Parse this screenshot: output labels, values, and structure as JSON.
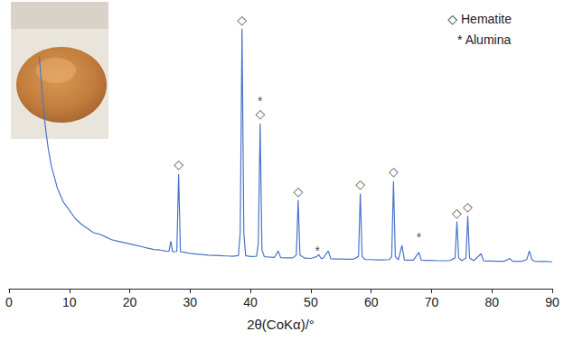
{
  "chart_data": {
    "type": "line",
    "x_label": "2θ(CoKα)/°",
    "color": "#4a74c9",
    "xlim": [
      0,
      90
    ],
    "xticks": [
      0,
      10,
      20,
      30,
      40,
      50,
      60,
      70,
      80,
      90
    ],
    "ylim": [
      0,
      100
    ],
    "tick_labels": "x",
    "grid": false,
    "legend": "upper right",
    "x": [
      5,
      5.5,
      6,
      6.5,
      7,
      8,
      9,
      10,
      11,
      12,
      13,
      14,
      15,
      16,
      17,
      18,
      19,
      20,
      21,
      22,
      23,
      24,
      25,
      26,
      26.5,
      26.8,
      27.1,
      27.8,
      28.1,
      28.4,
      29,
      30,
      31,
      32,
      33,
      34,
      35,
      36,
      37,
      38,
      38.3,
      38.6,
      38.9,
      39.2,
      40,
      41,
      41.3,
      41.6,
      41.9,
      42.3,
      43,
      44,
      44.6,
      45,
      46,
      47,
      47.6,
      47.9,
      48.2,
      49,
      50,
      51,
      51.3,
      51.7,
      52,
      52.9,
      53.3,
      54,
      55,
      56,
      57,
      57.9,
      58.2,
      58.5,
      59,
      60,
      61,
      62,
      63,
      63.4,
      63.7,
      64,
      64.5,
      65.1,
      65.5,
      66,
      67,
      67.9,
      68.3,
      69,
      70,
      71,
      72,
      73,
      73.9,
      74.2,
      74.5,
      75,
      75.7,
      76,
      76.3,
      77,
      78.2,
      78.6,
      79,
      80,
      81,
      82,
      83,
      83.4,
      84,
      85,
      85.8,
      86.2,
      86.6,
      87,
      88,
      89,
      90
    ],
    "values": [
      83,
      70,
      58,
      50,
      44,
      36,
      31,
      28,
      25,
      23,
      21.5,
      20,
      19.5,
      18.5,
      17.5,
      17,
      16.5,
      16,
      15.5,
      15,
      14.5,
      14,
      13.8,
      13.4,
      13.3,
      17,
      13.2,
      13.3,
      41,
      13.2,
      13,
      12.6,
      12.4,
      12.2,
      12,
      11.9,
      11.8,
      11.7,
      11.6,
      11.8,
      20,
      93,
      20,
      11.8,
      11.5,
      11.6,
      16,
      59,
      14,
      11.4,
      11.3,
      11.2,
      13.5,
      11.1,
      11,
      11,
      12,
      31.6,
      12,
      10.9,
      10.8,
      11.5,
      12.2,
      10.8,
      10.8,
      13.5,
      10.7,
      10.6,
      10.6,
      10.5,
      10.5,
      11.5,
      34,
      11.5,
      10.4,
      10.4,
      10.3,
      10.3,
      10.4,
      11.5,
      38.4,
      11.5,
      10.3,
      15.5,
      10.3,
      10.2,
      10.2,
      13,
      10.2,
      10.1,
      10.1,
      10,
      10,
      10,
      11,
      24,
      11,
      10,
      11,
      26,
      11,
      10,
      12.5,
      10,
      9.9,
      9.9,
      9.8,
      9.8,
      10.8,
      9.8,
      9.8,
      9.8,
      10.5,
      13.5,
      10.5,
      9.8,
      9.7,
      9.7,
      9.6
    ],
    "annotations": [
      {
        "x": 28.1,
        "y": 44.5,
        "text": "◇"
      },
      {
        "x": 38.6,
        "y": 96,
        "text": "◇"
      },
      {
        "x": 41.6,
        "y": 62.5,
        "text": "◇"
      },
      {
        "x": 41.6,
        "y": 67,
        "text": "*"
      },
      {
        "x": 47.9,
        "y": 35,
        "text": "◇"
      },
      {
        "x": 51.1,
        "y": 13.5,
        "text": "*"
      },
      {
        "x": 58.2,
        "y": 37.4,
        "text": "◇"
      },
      {
        "x": 63.7,
        "y": 42,
        "text": "◇"
      },
      {
        "x": 67.9,
        "y": 18.4,
        "text": "*"
      },
      {
        "x": 74.2,
        "y": 27,
        "text": "◇"
      },
      {
        "x": 76.0,
        "y": 29.4,
        "text": "◇"
      }
    ],
    "key": [
      {
        "symbol": "◇",
        "label": "Hematite"
      },
      {
        "symbol": "*",
        "label": "Alumina"
      }
    ]
  }
}
